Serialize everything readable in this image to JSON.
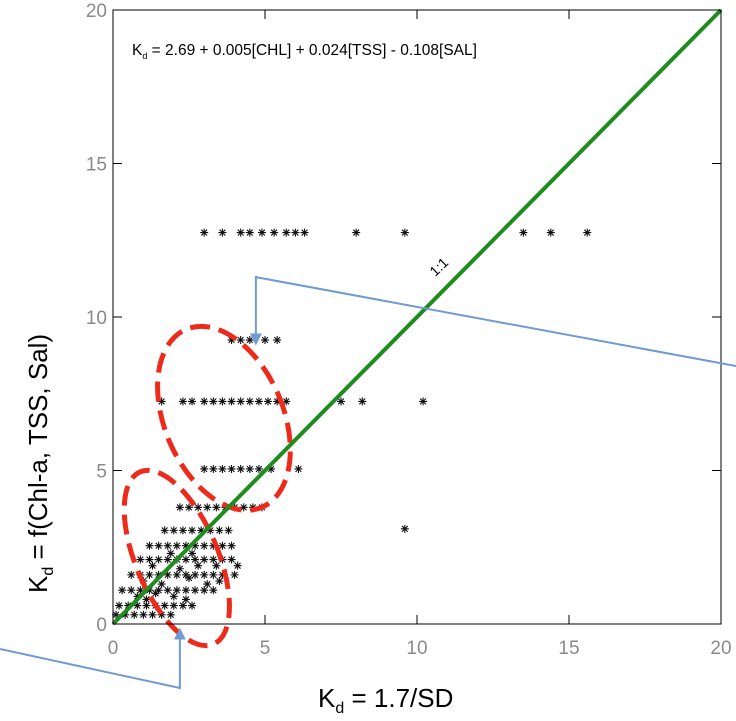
{
  "chart_data": {
    "type": "scatter",
    "title": "",
    "equation": {
      "k_letter": "K",
      "k_sub": "d",
      "rhs": " = 2.69 + 0.005[CHL] + 0.024[TSS] - 0.108[SAL]"
    },
    "xlabel": {
      "main": "K",
      "sub": "d",
      "rest": " = 1.7/SD"
    },
    "ylabel": {
      "main": "K",
      "sub": "d",
      "rest": " = f(Chl-a, TSS, Sal)"
    },
    "xlim": [
      0,
      20
    ],
    "ylim": [
      0,
      20
    ],
    "x_ticks": [
      "0",
      "5",
      "10",
      "15",
      "20"
    ],
    "y_ticks": [
      "0",
      "5",
      "10",
      "15",
      "20"
    ],
    "grid": false,
    "reference_line": {
      "label": "1:1",
      "slope": 1,
      "intercept": 0,
      "color": "#1e8c1e"
    },
    "marker": "asterisk",
    "series": [
      {
        "points": [
          [
            3.0,
            12.75
          ],
          [
            3.6,
            12.75
          ],
          [
            4.2,
            12.75
          ],
          [
            4.5,
            12.75
          ],
          [
            4.9,
            12.75
          ],
          [
            5.3,
            12.75
          ],
          [
            5.7,
            12.75
          ],
          [
            6.0,
            12.75
          ],
          [
            6.3,
            12.75
          ],
          [
            8.0,
            12.75
          ],
          [
            9.6,
            12.75
          ],
          [
            13.5,
            12.75
          ],
          [
            14.4,
            12.75
          ],
          [
            15.6,
            12.75
          ],
          [
            3.9,
            9.25
          ],
          [
            4.2,
            9.25
          ],
          [
            4.5,
            9.25
          ],
          [
            5.0,
            9.25
          ],
          [
            5.4,
            9.25
          ],
          [
            1.6,
            7.25
          ],
          [
            2.3,
            7.25
          ],
          [
            2.6,
            7.25
          ],
          [
            3.0,
            7.25
          ],
          [
            3.3,
            7.25
          ],
          [
            3.6,
            7.25
          ],
          [
            3.9,
            7.25
          ],
          [
            4.2,
            7.25
          ],
          [
            4.5,
            7.25
          ],
          [
            4.8,
            7.25
          ],
          [
            5.1,
            7.25
          ],
          [
            5.4,
            7.25
          ],
          [
            5.7,
            7.25
          ],
          [
            7.5,
            7.25
          ],
          [
            8.2,
            7.25
          ],
          [
            10.2,
            7.25
          ],
          [
            3.0,
            5.05
          ],
          [
            3.3,
            5.05
          ],
          [
            3.6,
            5.05
          ],
          [
            3.9,
            5.05
          ],
          [
            4.2,
            5.05
          ],
          [
            4.5,
            5.05
          ],
          [
            4.8,
            5.05
          ],
          [
            5.2,
            5.05
          ],
          [
            6.1,
            5.05
          ],
          [
            2.2,
            3.8
          ],
          [
            2.5,
            3.8
          ],
          [
            2.8,
            3.8
          ],
          [
            3.1,
            3.8
          ],
          [
            3.4,
            3.8
          ],
          [
            3.7,
            3.8
          ],
          [
            4.0,
            3.8
          ],
          [
            4.3,
            3.8
          ],
          [
            4.6,
            3.8
          ],
          [
            4.9,
            3.8
          ],
          [
            9.6,
            3.1
          ],
          [
            1.7,
            3.05
          ],
          [
            2.0,
            3.05
          ],
          [
            2.3,
            3.05
          ],
          [
            2.6,
            3.05
          ],
          [
            2.9,
            3.05
          ],
          [
            3.2,
            3.05
          ],
          [
            3.5,
            3.05
          ],
          [
            3.8,
            3.05
          ],
          [
            1.2,
            2.55
          ],
          [
            1.5,
            2.55
          ],
          [
            1.8,
            2.55
          ],
          [
            2.1,
            2.55
          ],
          [
            2.4,
            2.55
          ],
          [
            2.7,
            2.55
          ],
          [
            3.0,
            2.55
          ],
          [
            3.3,
            2.55
          ],
          [
            3.6,
            2.55
          ],
          [
            3.9,
            2.55
          ],
          [
            0.9,
            2.1
          ],
          [
            1.2,
            2.1
          ],
          [
            1.5,
            2.1
          ],
          [
            1.8,
            2.1
          ],
          [
            2.1,
            2.1
          ],
          [
            2.4,
            2.1
          ],
          [
            2.7,
            2.1
          ],
          [
            3.0,
            2.1
          ],
          [
            3.3,
            2.1
          ],
          [
            3.6,
            2.1
          ],
          [
            3.9,
            2.1
          ],
          [
            0.6,
            1.6
          ],
          [
            0.9,
            1.6
          ],
          [
            1.2,
            1.6
          ],
          [
            1.5,
            1.6
          ],
          [
            1.8,
            1.6
          ],
          [
            2.1,
            1.6
          ],
          [
            2.4,
            1.6
          ],
          [
            2.7,
            1.6
          ],
          [
            3.0,
            1.6
          ],
          [
            3.3,
            1.6
          ],
          [
            3.6,
            1.6
          ],
          [
            4.0,
            1.6
          ],
          [
            0.3,
            1.1
          ],
          [
            0.6,
            1.1
          ],
          [
            0.9,
            1.1
          ],
          [
            1.2,
            1.1
          ],
          [
            1.5,
            1.1
          ],
          [
            1.8,
            1.1
          ],
          [
            2.1,
            1.1
          ],
          [
            2.4,
            1.1
          ],
          [
            2.7,
            1.1
          ],
          [
            3.0,
            1.1
          ],
          [
            3.3,
            1.1
          ],
          [
            0.2,
            0.6
          ],
          [
            0.5,
            0.6
          ],
          [
            0.8,
            0.6
          ],
          [
            1.1,
            0.6
          ],
          [
            1.4,
            0.6
          ],
          [
            1.7,
            0.6
          ],
          [
            2.0,
            0.6
          ],
          [
            2.3,
            0.6
          ],
          [
            2.6,
            0.6
          ],
          [
            0.1,
            0.3
          ],
          [
            0.4,
            0.3
          ],
          [
            0.7,
            0.3
          ],
          [
            1.0,
            0.3
          ],
          [
            1.3,
            0.3
          ],
          [
            1.6,
            0.3
          ],
          [
            1.9,
            0.3
          ],
          [
            1.0,
            1.4
          ],
          [
            1.3,
            1.9
          ],
          [
            1.6,
            1.3
          ],
          [
            2.2,
            1.8
          ],
          [
            2.5,
            1.5
          ],
          [
            2.8,
            1.9
          ],
          [
            3.1,
            1.3
          ],
          [
            1.9,
            2.3
          ],
          [
            2.6,
            2.3
          ],
          [
            0.8,
            0.9
          ],
          [
            1.1,
            0.8
          ],
          [
            1.4,
            1.0
          ],
          [
            2.0,
            0.9
          ],
          [
            2.4,
            0.8
          ],
          [
            3.4,
            1.9
          ],
          [
            3.5,
            1.4
          ],
          [
            4.1,
            1.9
          ]
        ]
      }
    ],
    "annotations": {
      "ellipses": [
        {
          "cx": 3.65,
          "cy": 6.7,
          "rx": 1.95,
          "ry": 3.15,
          "angle": -23,
          "color": "#ee2b1a",
          "style": "dashed"
        },
        {
          "cx": 2.1,
          "cy": 2.15,
          "rx": 1.35,
          "ry": 3.05,
          "angle": -23,
          "color": "#ee2b1a",
          "style": "dashed"
        }
      ],
      "callout_color": "#6f9bd1"
    }
  }
}
